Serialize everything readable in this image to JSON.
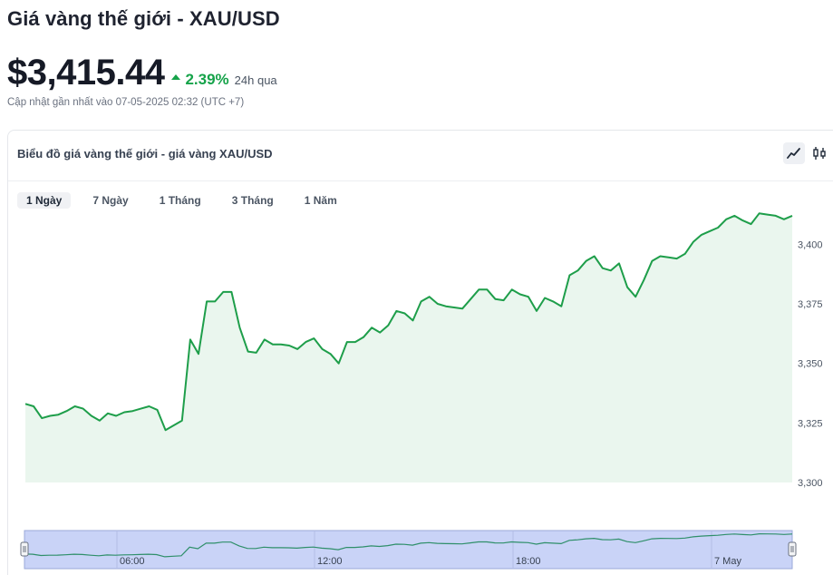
{
  "page": {
    "title": "Giá vàng thế giới - XAU/USD",
    "price": "$3,415.44",
    "change": "2.39%",
    "change_period": "24h qua",
    "updated": "Cập nhật gần nhất vào 07-05-2025 02:32 (UTC +7)"
  },
  "colors": {
    "up": "#16a34a",
    "line": "#1e9e4a",
    "area": "#eaf6ee",
    "navigator_bg": "#c9d3f7",
    "navigator_line": "#2f8f6a"
  },
  "card": {
    "title": "Biểu đồ giá vàng thế giới - giá vàng XAU/USD",
    "view_buttons": [
      {
        "name": "line-chart-icon",
        "active": true
      },
      {
        "name": "candlestick-icon",
        "active": false
      }
    ],
    "ranges": [
      "1 Ngày",
      "7 Ngày",
      "1 Tháng",
      "3 Tháng",
      "1 Năm"
    ],
    "active_range": 0
  },
  "chart_data": {
    "type": "area",
    "ylim": [
      3300,
      3415
    ],
    "yticks": [
      "3,400",
      "3,375",
      "3,350",
      "3,325",
      "3,300"
    ],
    "ytick_values": [
      3400,
      3375,
      3350,
      3325,
      3300
    ],
    "values": [
      3333,
      3332,
      3327,
      3328,
      3328.5,
      3330,
      3332,
      3331,
      3328,
      3326,
      3329,
      3328,
      3329.5,
      3330,
      3331,
      3332,
      3330.5,
      3322,
      3324,
      3326,
      3360,
      3354,
      3376,
      3376,
      3380,
      3380,
      3365,
      3355,
      3354.5,
      3360,
      3358,
      3358,
      3357.5,
      3356,
      3359,
      3360.5,
      3356,
      3354,
      3350,
      3359,
      3359,
      3361,
      3365,
      3363,
      3366,
      3372,
      3371,
      3368,
      3376,
      3378,
      3375,
      3374,
      3373.5,
      3373,
      3377,
      3381,
      3381,
      3377,
      3376.5,
      3381,
      3379,
      3378,
      3372,
      3377.5,
      3376,
      3374,
      3387,
      3389,
      3393,
      3395,
      3390,
      3389,
      3392,
      3382,
      3378,
      3385,
      3393,
      3395,
      3394.5,
      3394,
      3396,
      3401,
      3404,
      3405.5,
      3407,
      3410.5,
      3412,
      3410,
      3408.5,
      3413,
      3412.5,
      3412,
      3410.5,
      3412
    ],
    "navigator": {
      "time_labels": [
        "06:00",
        "12:00",
        "18:00",
        "7 May"
      ]
    }
  }
}
